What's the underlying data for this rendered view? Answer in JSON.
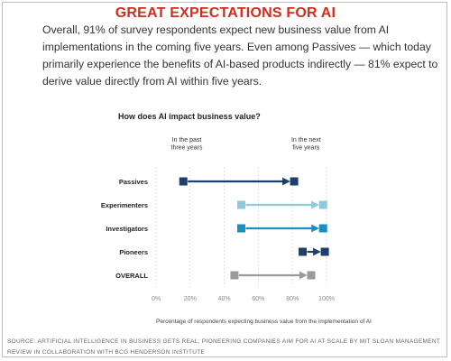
{
  "headline": "GREAT EXPECTATIONS FOR AI",
  "intro": "Overall, 91% of survey respondents expect new business value from AI implementations in the coming five years. Even among Passives — which today primarily experience the benefits of AI-based products indirectly — 81% expect to derive value directly from AI within five years.",
  "footnote": "SOURCE: ARTIFICIAL INTELLIGENCE IN BUSINESS GETS REAL; PIONEERING COMPANIES AIM FOR AI AT SCALE BY MIT SLOAN MANAGEMENT REVIEW IN COLLABORATION WITH BCG HENDERSON INSTITUTE",
  "chart_data": {
    "type": "dumbbell",
    "title": "How does AI impact business value?",
    "xlabel": "Percentage of respondents expecting business value from the implementation of AI",
    "xlim": [
      0,
      100
    ],
    "x_ticks": [
      "0%",
      "20%",
      "40%",
      "60%",
      "80%",
      "100%"
    ],
    "start_label": "In the past three years",
    "end_label": "In the next five years",
    "categories": [
      "Passives",
      "Experimenters",
      "Investigators",
      "Pioneers",
      "OVERALL"
    ],
    "series": [
      {
        "values": [
          16,
          50,
          50,
          86,
          46
        ]
      },
      {
        "values": [
          81,
          98,
          98,
          99,
          91
        ]
      }
    ],
    "colors": [
      "#1d3f6e",
      "#8ec9e0",
      "#1a8fc0",
      "#1d3f6e",
      "#9a9a9a"
    ],
    "legend": "none",
    "grid": "vertical"
  }
}
